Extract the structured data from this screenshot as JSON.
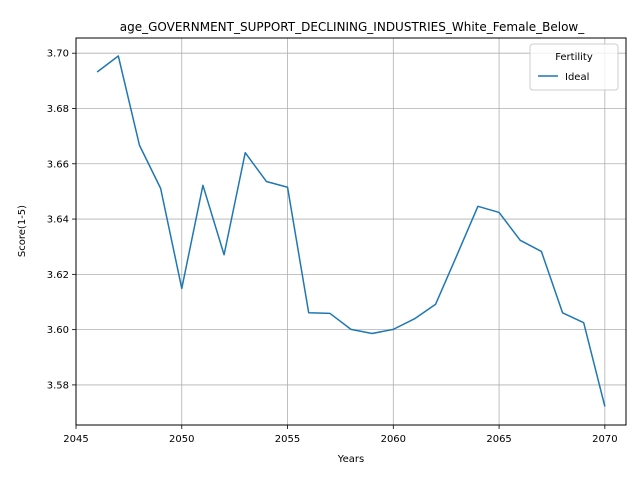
{
  "chart_data": {
    "type": "line",
    "title": "age_GOVERNMENT_SUPPORT_DECLINING_INDUSTRIES_White_Female_Below_",
    "xlabel": "Years",
    "ylabel": "Score(1-5)",
    "xlim": [
      2045,
      2071
    ],
    "ylim": [
      3.5655,
      3.7055
    ],
    "xticks": [
      2045,
      2050,
      2055,
      2060,
      2065,
      2070
    ],
    "yticks": [
      3.58,
      3.6,
      3.62,
      3.64,
      3.66,
      3.68,
      3.7
    ],
    "ytick_labels": [
      "3.58",
      "3.60",
      "3.62",
      "3.64",
      "3.66",
      "3.68",
      "3.70"
    ],
    "grid": true,
    "legend": {
      "title": "Fertility",
      "placement": "top-right"
    },
    "x": [
      2046,
      2047,
      2048,
      2049,
      2050,
      2051,
      2052,
      2053,
      2054,
      2055,
      2056,
      2057,
      2058,
      2059,
      2060,
      2061,
      2062,
      2063,
      2064,
      2065,
      2066,
      2067,
      2068,
      2069,
      2070
    ],
    "series": [
      {
        "name": "Ideal",
        "color": "#1f77b4",
        "values": [
          3.6932,
          3.699,
          3.6667,
          3.6511,
          3.6149,
          3.6522,
          3.6271,
          3.664,
          3.6536,
          3.6515,
          3.6061,
          3.6059,
          3.6001,
          3.5986,
          3.6001,
          3.6039,
          3.6092,
          3.6268,
          3.6446,
          3.6424,
          3.6323,
          3.6283,
          3.6061,
          3.6025,
          3.5722
        ]
      }
    ]
  }
}
